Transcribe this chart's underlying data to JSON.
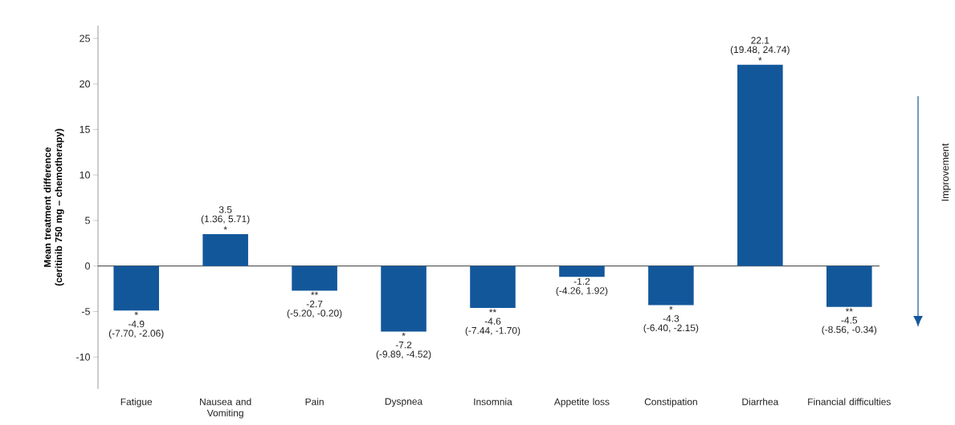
{
  "chart_data": {
    "type": "bar",
    "ylabel": "Mean treatment difference (ceritinib 750 mg – chemotherapy)",
    "categories": [
      "Fatigue",
      "Nausea and Vomiting",
      "Pain",
      "Dyspnea",
      "Insomnia",
      "Appetite loss",
      "Constipation",
      "Diarrhea",
      "Financial difficulties"
    ],
    "values": [
      -4.9,
      3.5,
      -2.7,
      -7.2,
      -4.6,
      -1.2,
      -4.3,
      22.1,
      -4.5
    ],
    "color": "#13579b",
    "value_labels": [
      "-4.9",
      "3.5",
      "-2.7",
      "-7.2",
      "-4.6",
      "-1.2",
      "-4.3",
      "22.1",
      "-4.5"
    ],
    "ylim": [
      -13.5,
      26.4
    ],
    "yticks": [
      -10,
      -5,
      0,
      5,
      10,
      15,
      20,
      25
    ],
    "annotations": [
      {
        "text": "*",
        "x": "Fatigue",
        "y": -4.9
      },
      {
        "text": "(-7.70, -2.06)",
        "x": "Fatigue",
        "y": -4.9
      },
      {
        "text": "*",
        "x": "Nausea and Vomiting",
        "y": 3.5
      },
      {
        "text": "(1.36, 5.71)",
        "x": "Nausea and Vomiting",
        "y": 3.5
      },
      {
        "text": "**",
        "x": "Pain",
        "y": -2.7
      },
      {
        "text": "(-5.20, -0.20)",
        "x": "Pain",
        "y": -2.7
      },
      {
        "text": "*",
        "x": "Dyspnea",
        "y": -7.2
      },
      {
        "text": "(-9.89, -4.52)",
        "x": "Dyspnea",
        "y": -7.2
      },
      {
        "text": "**",
        "x": "Insomnia",
        "y": -4.6
      },
      {
        "text": "(-7.44, -1.70)",
        "x": "Insomnia",
        "y": -4.6
      },
      {
        "text": "(-4.26, 1.92)",
        "x": "Appetite loss",
        "y": -1.2
      },
      {
        "text": "*",
        "x": "Constipation",
        "y": -4.3
      },
      {
        "text": "(-6.40, -2.15)",
        "x": "Constipation",
        "y": -4.3
      },
      {
        "text": "*",
        "x": "Diarrhea",
        "y": 22.1
      },
      {
        "text": "(19.48, 24.74)",
        "x": "Diarrhea",
        "y": 22.1
      },
      {
        "text": "**",
        "x": "Financial difficulties",
        "y": -4.5
      },
      {
        "text": "(-8.56, -0.34)",
        "x": "Financial difficulties",
        "y": -4.5
      },
      "Improvement"
    ]
  }
}
